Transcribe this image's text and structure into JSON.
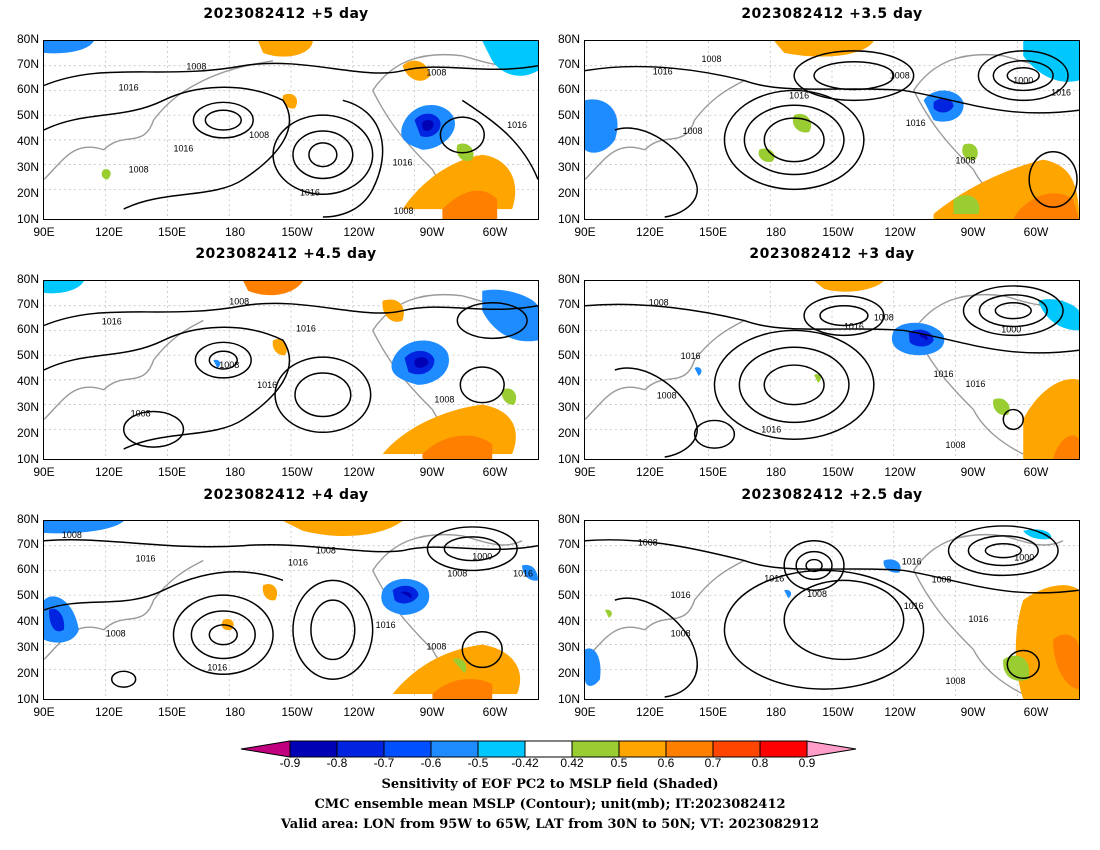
{
  "panels": [
    {
      "title": "2023082412 +5 day"
    },
    {
      "title": "2023082412 +3.5 day"
    },
    {
      "title": "2023082412 +4.5 day"
    },
    {
      "title": "2023082412 +3 day"
    },
    {
      "title": "2023082412 +4 day"
    },
    {
      "title": "2023082412 +2.5 day"
    }
  ],
  "axes": {
    "lat_labels": [
      "80N",
      "70N",
      "60N",
      "50N",
      "40N",
      "30N",
      "20N",
      "10N"
    ],
    "lon_labels": [
      "90E",
      "120E",
      "150E",
      "180",
      "150W",
      "120W",
      "90W",
      "60W"
    ]
  },
  "contour_labels": [
    "1016",
    "1008",
    "1000"
  ],
  "colorbar": {
    "labels": [
      "-0.9",
      "-0.8",
      "-0.7",
      "-0.6",
      "-0.5",
      "-0.42",
      "0.42",
      "0.5",
      "0.6",
      "0.7",
      "0.8",
      "0.9"
    ],
    "colors": [
      "#c0007f",
      "#0000b4",
      "#0024e0",
      "#0050ff",
      "#1e8cff",
      "#00c8ff",
      "#ffffff",
      "#9acd32",
      "#ffa500",
      "#ff7f00",
      "#ff4500",
      "#ff0000",
      "#ff9ec8"
    ]
  },
  "captions": [
    "Sensitivity of EOF PC2 to MSLP field (Shaded)",
    "CMC ensemble mean MSLP (Contour); unit(mb); IT:2023082412",
    "Valid area: LON from 95W to 65W, LAT from 30N to 50N; VT: 2023082912"
  ]
}
